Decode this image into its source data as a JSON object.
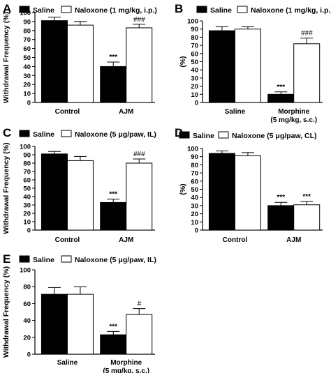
{
  "chart_data": [
    {
      "panel": "A",
      "type": "bar",
      "legend": [
        "Saline",
        "Naloxone (1 mg/kg, i.p.)"
      ],
      "ylabel": "Withdrawal Frequency (%)",
      "ylim": [
        0,
        100
      ],
      "yticks": [
        "0",
        "10",
        "20",
        "30",
        "40",
        "50",
        "60",
        "70",
        "80",
        "90",
        "100"
      ],
      "categories": [
        [
          "Control"
        ],
        [
          "AJM"
        ]
      ],
      "series": [
        {
          "name": "Saline",
          "color": "#000000",
          "values": [
            91,
            40
          ],
          "errors": [
            4,
            5
          ],
          "marks": [
            "",
            "***"
          ]
        },
        {
          "name": "Naloxone (1 mg/kg, i.p.)",
          "color": "#ffffff",
          "values": [
            86,
            83
          ],
          "errors": [
            4,
            4
          ],
          "marks": [
            "",
            "###"
          ]
        }
      ]
    },
    {
      "panel": "B",
      "type": "bar",
      "legend": [
        "Saline",
        "Naloxone (1 mg/kg, i.p.)"
      ],
      "ylabel": "(%)",
      "ylim": [
        0,
        100
      ],
      "yticks": [
        "0",
        "10",
        "20",
        "30",
        "40",
        "50",
        "60",
        "70",
        "80",
        "90",
        "100"
      ],
      "categories": [
        [
          "Saline"
        ],
        [
          "Morphine",
          "(5 mg/kg, s.c.)"
        ]
      ],
      "series": [
        {
          "name": "Saline",
          "color": "#000000",
          "values": [
            88,
            10
          ],
          "errors": [
            5,
            3
          ],
          "marks": [
            "",
            "***"
          ]
        },
        {
          "name": "Naloxone (1 mg/kg, i.p.)",
          "color": "#ffffff",
          "values": [
            90,
            72
          ],
          "errors": [
            3,
            7
          ],
          "marks": [
            "",
            "###"
          ]
        }
      ]
    },
    {
      "panel": "C",
      "type": "bar",
      "legend": [
        "Saline",
        "Naloxone (5 μg/paw, IL)"
      ],
      "ylabel": "Withdrawal Frequency (%)",
      "ylim": [
        0,
        100
      ],
      "yticks": [
        "0",
        "10",
        "20",
        "30",
        "40",
        "50",
        "60",
        "70",
        "80",
        "90",
        "100"
      ],
      "categories": [
        [
          "Control"
        ],
        [
          "AJM"
        ]
      ],
      "series": [
        {
          "name": "Saline",
          "color": "#000000",
          "values": [
            91,
            33
          ],
          "errors": [
            3,
            4
          ],
          "marks": [
            "",
            "***"
          ]
        },
        {
          "name": "Naloxone (5 μg/paw, IL)",
          "color": "#ffffff",
          "values": [
            83,
            80
          ],
          "errors": [
            5,
            5
          ],
          "marks": [
            "",
            "###"
          ]
        }
      ]
    },
    {
      "panel": "D",
      "type": "bar",
      "legend": [
        "Saline",
        "Naloxone (5 μg/paw, CL)"
      ],
      "ylabel": "(%)",
      "ylim": [
        0,
        100
      ],
      "yticks": [
        "0",
        "10",
        "20",
        "30",
        "40",
        "50",
        "60",
        "70",
        "80",
        "90",
        "100"
      ],
      "categories": [
        [
          "Control"
        ],
        [
          "AJM"
        ]
      ],
      "series": [
        {
          "name": "Saline",
          "color": "#000000",
          "values": [
            94,
            30
          ],
          "errors": [
            3,
            4
          ],
          "marks": [
            "",
            "***"
          ]
        },
        {
          "name": "Naloxone (5 μg/paw, CL)",
          "color": "#ffffff",
          "values": [
            91,
            31
          ],
          "errors": [
            4,
            4
          ],
          "marks": [
            "",
            "***"
          ]
        }
      ]
    },
    {
      "panel": "E",
      "type": "bar",
      "legend": [
        "Saline",
        "Naloxone (5 μg/paw, IL)"
      ],
      "ylabel": "Withdrawal Frequency (%)",
      "ylim": [
        0,
        100
      ],
      "yticks": [
        "0",
        "20",
        "40",
        "60",
        "80",
        "100"
      ],
      "categories": [
        [
          "Saline"
        ],
        [
          "Morphine",
          "(5 mg/kg, s.c.)"
        ]
      ],
      "series": [
        {
          "name": "Saline",
          "color": "#000000",
          "values": [
            71,
            23
          ],
          "errors": [
            8,
            4
          ],
          "marks": [
            "",
            "***"
          ]
        },
        {
          "name": "Naloxone (5 μg/paw, IL)",
          "color": "#ffffff",
          "values": [
            71,
            47
          ],
          "errors": [
            9,
            7
          ],
          "marks": [
            "",
            "#"
          ]
        }
      ]
    }
  ]
}
